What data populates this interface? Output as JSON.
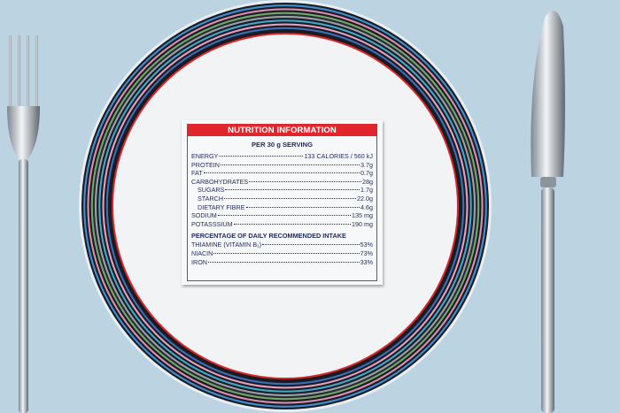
{
  "label": {
    "title": "NUTRITION INFORMATION",
    "serving": "PER 30 g SERVING",
    "nutrients": [
      {
        "name": "ENERGY",
        "value": "133 CALORIES / 560 kJ",
        "sub": false
      },
      {
        "name": "PROTEIN",
        "value": "3.7g",
        "sub": false
      },
      {
        "name": "FAT",
        "value": "0.7g",
        "sub": false
      },
      {
        "name": "CARBOHYDRATES",
        "value": "28g",
        "sub": false
      },
      {
        "name": "SUGARS",
        "value": "1.7g",
        "sub": true
      },
      {
        "name": "STARCH",
        "value": "22.0g",
        "sub": true
      },
      {
        "name": "DIETARY FIBRE",
        "value": "4.6g",
        "sub": true
      },
      {
        "name": "SODIUM",
        "value": "135 mg",
        "sub": false
      },
      {
        "name": "POTASSSIUM",
        "value": "190 mg",
        "sub": false
      }
    ],
    "daily_heading": "PERCENTAGE OF DAILY RECOMMENDED INTAKE",
    "daily": [
      {
        "name": "THIAMINE (VITAMIN B₁)",
        "value": "53%"
      },
      {
        "name": "NIACIN",
        "value": "73%"
      },
      {
        "name": "IRON",
        "value": "33%"
      }
    ]
  },
  "colors": {
    "tablecloth": "#bcd3e2",
    "label_red": "#e0262c",
    "label_text": "#1f2a5c",
    "plate_rings": [
      "#1b1b22",
      "#3d8fcf",
      "#1b1b22",
      "#d98fb0",
      "#1b1b22",
      "#6fa86a",
      "#2a2a33",
      "#9aa0a8",
      "#1b1b22",
      "#3fa7c9",
      "#1b1b22",
      "#e4a0c0",
      "#1b1b22",
      "#3a6fb8",
      "#1b1b22"
    ]
  }
}
